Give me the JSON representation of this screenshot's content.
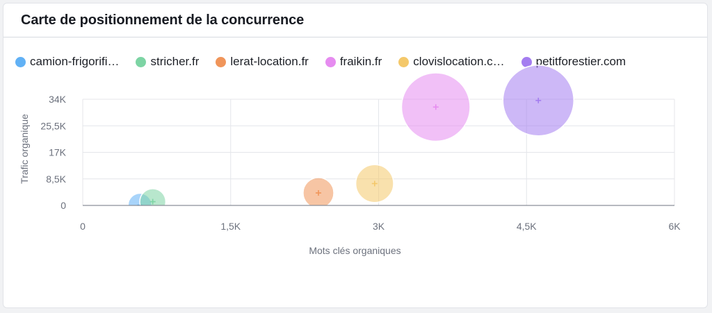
{
  "header": {
    "title": "Carte de positionnement de la concurrence"
  },
  "legend": [
    {
      "label": "camion-frigorifi…",
      "color": "#61b1f5"
    },
    {
      "label": "stricher.fr",
      "color": "#7dd4a4"
    },
    {
      "label": "lerat-location.fr",
      "color": "#f0955a"
    },
    {
      "label": "fraikin.fr",
      "color": "#e68cf0"
    },
    {
      "label": "clovislocation.c…",
      "color": "#f4c86a"
    },
    {
      "label": "petitforestier.com",
      "color": "#a47df0"
    }
  ],
  "chart_data": {
    "type": "scatter",
    "xlabel": "Mots clés organiques",
    "ylabel": "Trafic organique",
    "xlim": [
      0,
      6000
    ],
    "ylim": [
      0,
      34000
    ],
    "x_ticks": [
      0,
      1500,
      3000,
      4500,
      6000
    ],
    "x_tick_labels": [
      "0",
      "1,5K",
      "3K",
      "4,5K",
      "6K"
    ],
    "y_ticks": [
      0,
      8500,
      17000,
      25500,
      34000
    ],
    "y_tick_labels": [
      "0",
      "8,5K",
      "17K",
      "25,5K",
      "34K"
    ],
    "grid": true,
    "series": [
      {
        "name": "camion-frigorifi…",
        "color": "#61b1f5",
        "x": 580,
        "y": 100,
        "size": 0.5
      },
      {
        "name": "stricher.fr",
        "color": "#7dd4a4",
        "x": 710,
        "y": 1200,
        "size": 0.55
      },
      {
        "name": "lerat-location.fr",
        "color": "#f0955a",
        "x": 2390,
        "y": 4000,
        "size": 0.65
      },
      {
        "name": "clovislocation.c…",
        "color": "#f4c86a",
        "x": 2960,
        "y": 7000,
        "size": 0.8
      },
      {
        "name": "fraikin.fr",
        "color": "#e68cf0",
        "x": 3580,
        "y": 31500,
        "size": 1.45
      },
      {
        "name": "petitforestier.com",
        "color": "#a47df0",
        "x": 4620,
        "y": 33600,
        "size": 1.5
      }
    ]
  }
}
